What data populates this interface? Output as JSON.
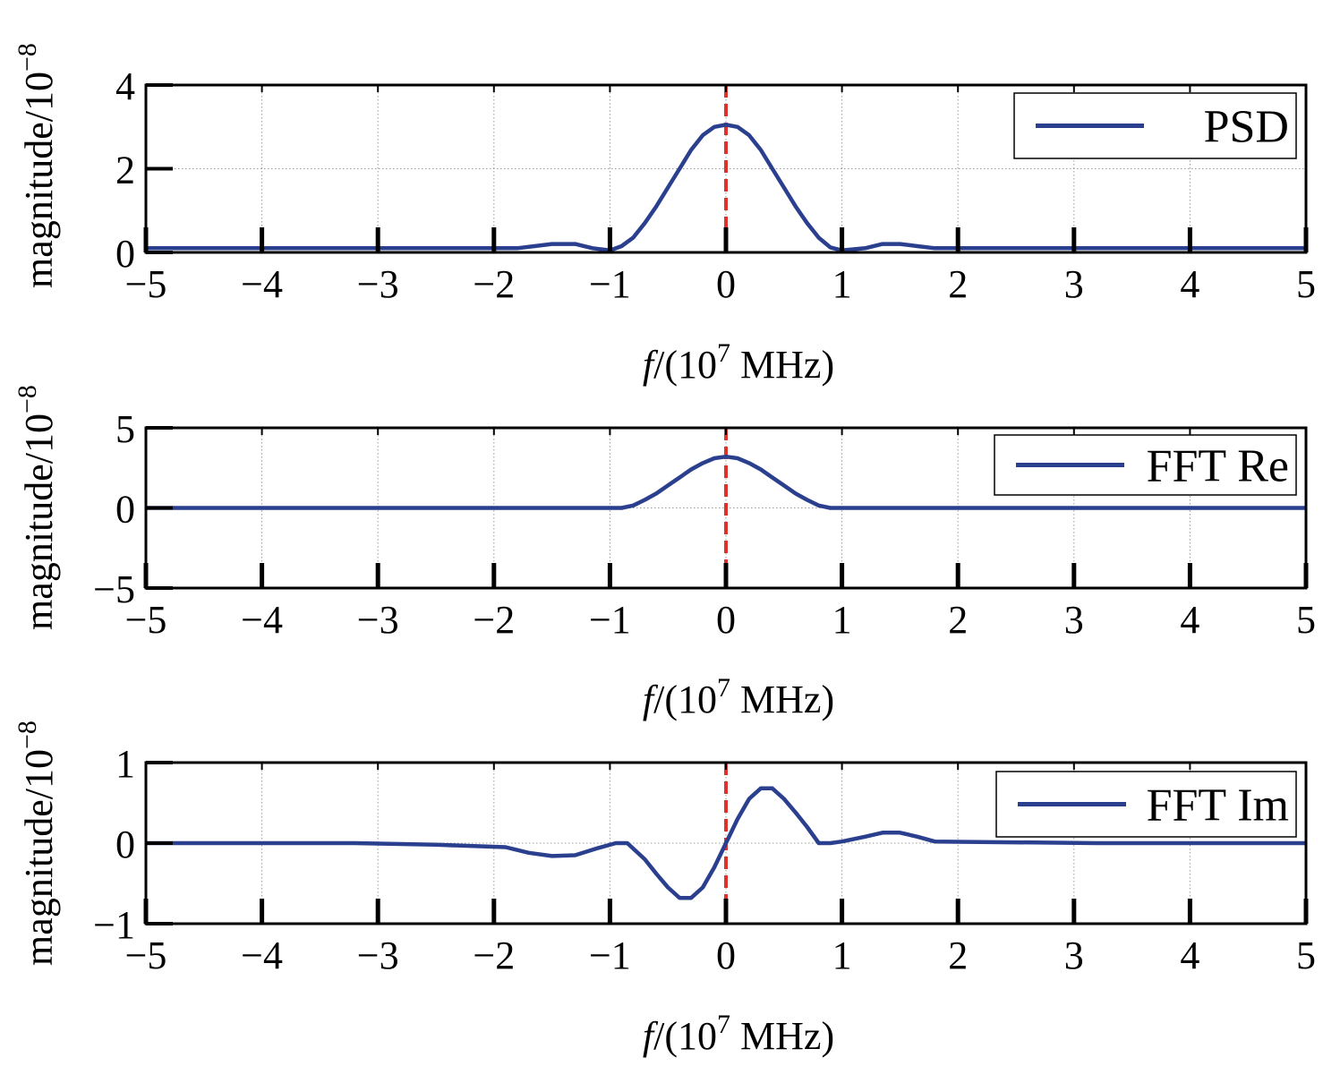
{
  "chart_data": [
    {
      "type": "line",
      "xlabel_italic": "f",
      "xlabel_rest": "/(10",
      "xlabel_exp": "7",
      "xlabel_unit": " MHz)",
      "ylabel_main": "magnitude/10",
      "ylabel_exp": "−8",
      "xlim": [
        -5,
        5
      ],
      "ylim": [
        0,
        4
      ],
      "xticks": [
        -5,
        -4,
        -3,
        -2,
        -1,
        0,
        1,
        2,
        3,
        4,
        5
      ],
      "xtick_labels": [
        "−5",
        "−4",
        "−3",
        "−2",
        "−1",
        "0",
        "1",
        "2",
        "3",
        "4",
        "5"
      ],
      "yticks": [
        0,
        2,
        4
      ],
      "ytick_labels": [
        "0",
        "2",
        "4"
      ],
      "grid": true,
      "legend_position": "top-right",
      "marker_line_x": 0,
      "series": [
        {
          "name": "PSD",
          "color": "#2b3f8f",
          "x": [
            -5,
            -1.8,
            -1.65,
            -1.5,
            -1.3,
            -1.15,
            -1.0,
            -0.9,
            -0.8,
            -0.7,
            -0.6,
            -0.5,
            -0.4,
            -0.3,
            -0.2,
            -0.1,
            0,
            0.1,
            0.2,
            0.3,
            0.4,
            0.5,
            0.6,
            0.7,
            0.8,
            0.9,
            1.0,
            1.2,
            1.35,
            1.5,
            1.65,
            1.8,
            5
          ],
          "y": [
            0.1,
            0.1,
            0.15,
            0.2,
            0.2,
            0.1,
            0.05,
            0.15,
            0.35,
            0.7,
            1.1,
            1.55,
            2.0,
            2.45,
            2.8,
            3.0,
            3.05,
            3.0,
            2.8,
            2.45,
            2.0,
            1.55,
            1.1,
            0.7,
            0.35,
            0.12,
            0.05,
            0.1,
            0.2,
            0.2,
            0.15,
            0.1,
            0.1
          ]
        }
      ]
    },
    {
      "type": "line",
      "xlabel_italic": "f",
      "xlabel_rest": "/(10",
      "xlabel_exp": "7",
      "xlabel_unit": " MHz)",
      "ylabel_main": "magnitude/10",
      "ylabel_exp": "−8",
      "xlim": [
        -5,
        5
      ],
      "ylim": [
        -5,
        5
      ],
      "xticks": [
        -5,
        -4,
        -3,
        -2,
        -1,
        0,
        1,
        2,
        3,
        4,
        5
      ],
      "xtick_labels": [
        "−5",
        "−4",
        "−3",
        "−2",
        "−1",
        "0",
        "1",
        "2",
        "3",
        "4",
        "5"
      ],
      "yticks": [
        -5,
        0,
        5
      ],
      "ytick_labels": [
        "−5",
        "0",
        "5"
      ],
      "grid": true,
      "legend_position": "top-right",
      "marker_line_x": 0,
      "series": [
        {
          "name": "FFT Re",
          "color": "#2b3f8f",
          "x": [
            -5,
            -0.9,
            -0.8,
            -0.7,
            -0.6,
            -0.5,
            -0.4,
            -0.3,
            -0.2,
            -0.1,
            0,
            0.1,
            0.2,
            0.3,
            0.4,
            0.5,
            0.6,
            0.7,
            0.8,
            0.9,
            5
          ],
          "y": [
            0,
            0,
            0.15,
            0.5,
            0.9,
            1.4,
            1.9,
            2.4,
            2.8,
            3.1,
            3.2,
            3.1,
            2.8,
            2.4,
            1.9,
            1.4,
            0.9,
            0.5,
            0.15,
            0,
            0
          ]
        }
      ]
    },
    {
      "type": "line",
      "xlabel_italic": "f",
      "xlabel_rest": "/(10",
      "xlabel_exp": "7",
      "xlabel_unit": " MHz)",
      "ylabel_main": "magnitude/10",
      "ylabel_exp": "−8",
      "xlim": [
        -5,
        5
      ],
      "ylim": [
        -1,
        1
      ],
      "xticks": [
        -5,
        -4,
        -3,
        -2,
        -1,
        0,
        1,
        2,
        3,
        4,
        5
      ],
      "xtick_labels": [
        "−5",
        "−4",
        "−3",
        "−2",
        "−1",
        "0",
        "1",
        "2",
        "3",
        "4",
        "5"
      ],
      "yticks": [
        -1,
        0,
        1
      ],
      "ytick_labels": [
        "−1",
        "0",
        "1"
      ],
      "grid": true,
      "legend_position": "top-right",
      "marker_line_x": 0,
      "series": [
        {
          "name": "FFT Im",
          "color": "#2b3f8f",
          "x": [
            -5,
            -3.2,
            -2.5,
            -1.9,
            -1.7,
            -1.5,
            -1.3,
            -1.1,
            -0.95,
            -0.85,
            -0.7,
            -0.6,
            -0.5,
            -0.4,
            -0.3,
            -0.2,
            -0.1,
            0,
            0.1,
            0.2,
            0.3,
            0.4,
            0.5,
            0.6,
            0.7,
            0.8,
            0.9,
            1.0,
            1.2,
            1.35,
            1.5,
            1.65,
            1.8,
            3.2,
            5
          ],
          "y": [
            0,
            0,
            -0.02,
            -0.05,
            -0.12,
            -0.16,
            -0.15,
            -0.06,
            0,
            0,
            -0.2,
            -0.38,
            -0.55,
            -0.68,
            -0.68,
            -0.55,
            -0.3,
            0,
            0.3,
            0.55,
            0.68,
            0.68,
            0.55,
            0.38,
            0.2,
            0,
            0,
            0.02,
            0.08,
            0.13,
            0.13,
            0.08,
            0.02,
            0,
            0
          ]
        }
      ]
    }
  ]
}
